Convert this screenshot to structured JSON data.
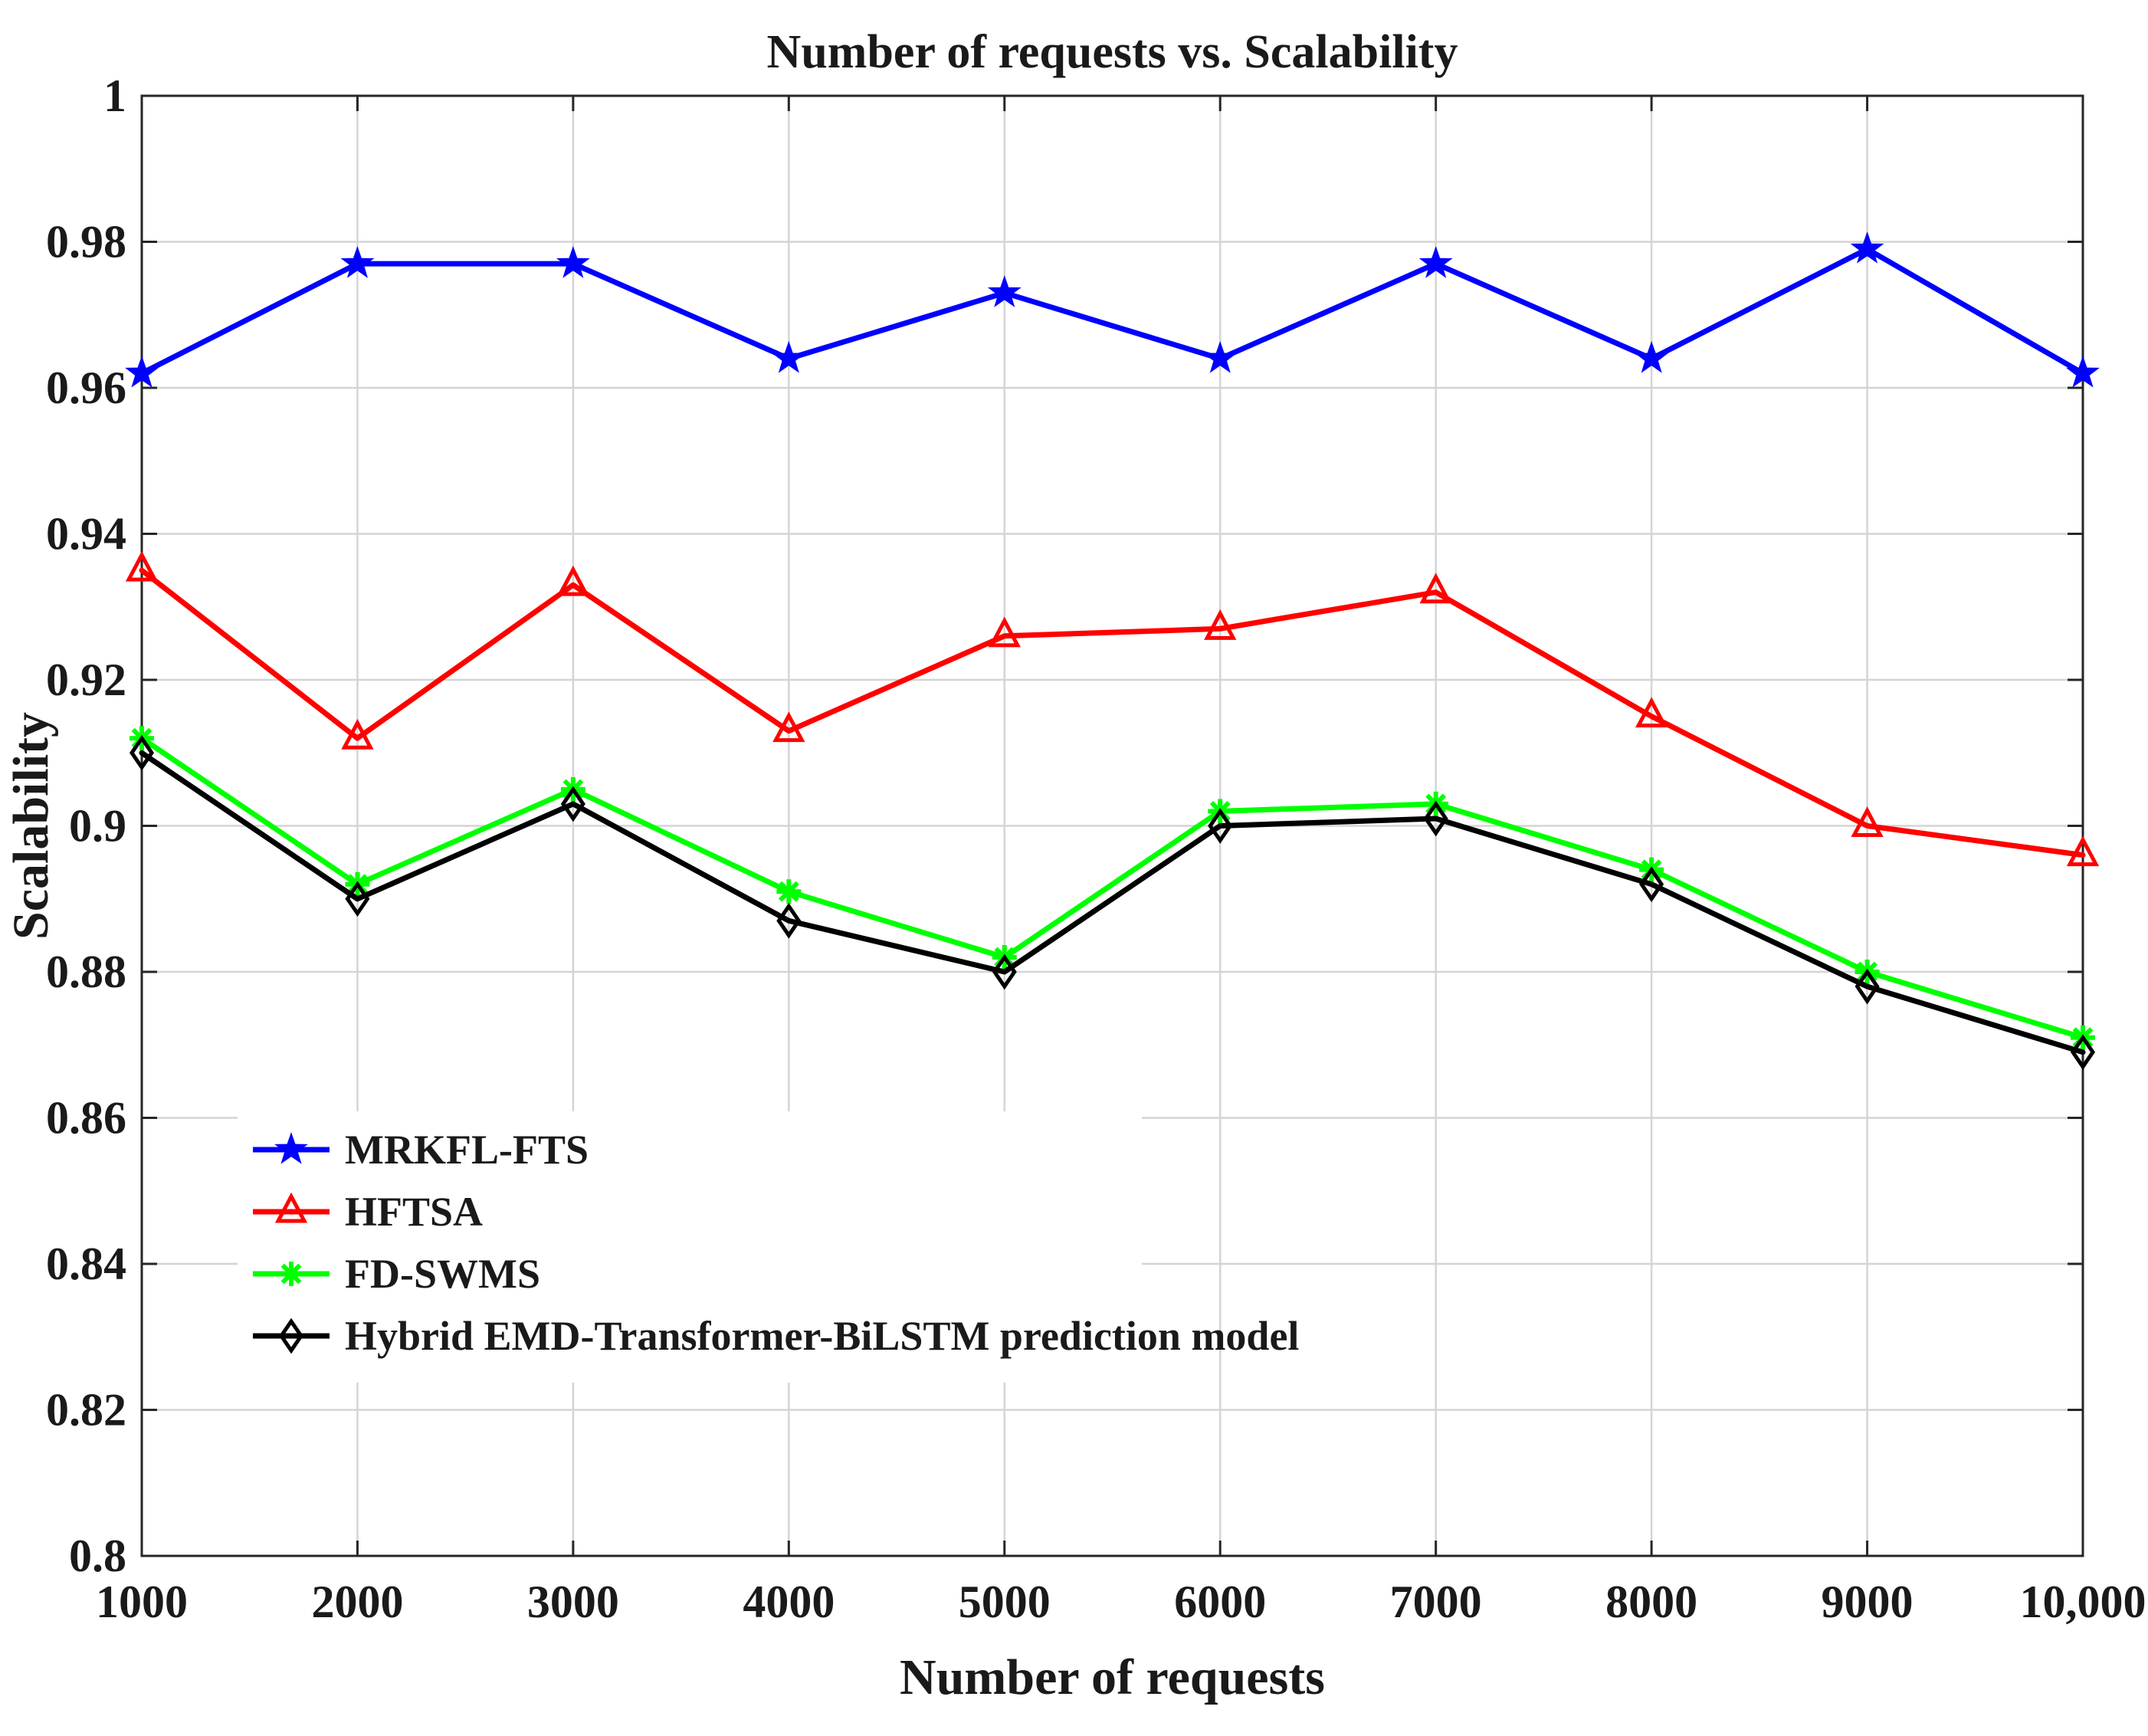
{
  "chart_data": {
    "type": "line",
    "title": "Number of requests vs. Scalability",
    "xlabel": "Number of requests",
    "ylabel": "Scalability",
    "x": [
      1000,
      2000,
      3000,
      4000,
      5000,
      6000,
      7000,
      8000,
      9000,
      10000
    ],
    "xtick_labels": [
      "1000",
      "2000",
      "3000",
      "4000",
      "5000",
      "6000",
      "7000",
      "8000",
      "9000",
      "10,000"
    ],
    "xlim": [
      1000,
      10000
    ],
    "ylim": [
      0.8,
      1.0
    ],
    "yticks": [
      0.8,
      0.82,
      0.84,
      0.86,
      0.88,
      0.9,
      0.92,
      0.94,
      0.96,
      0.98,
      1
    ],
    "ytick_labels": [
      "0.8",
      "0.82",
      "0.84",
      "0.86",
      "0.88",
      "0.9",
      "0.92",
      "0.94",
      "0.96",
      "0.98",
      "1"
    ],
    "grid": true,
    "legend_position": "lower-left",
    "series": [
      {
        "name": "MRKFL-FTS",
        "color": "#0000ff",
        "marker": "star",
        "values": [
          0.962,
          0.977,
          0.977,
          0.964,
          0.973,
          0.964,
          0.977,
          0.964,
          0.979,
          0.962
        ]
      },
      {
        "name": "HFTSA",
        "color": "#ff0000",
        "marker": "triangle",
        "values": [
          0.935,
          0.912,
          0.933,
          0.913,
          0.926,
          0.927,
          0.932,
          0.915,
          0.9,
          0.896
        ]
      },
      {
        "name": "FD-SWMS",
        "color": "#00ff00",
        "marker": "asterisk",
        "values": [
          0.912,
          0.892,
          0.905,
          0.891,
          0.882,
          0.902,
          0.903,
          0.894,
          0.88,
          0.871
        ]
      },
      {
        "name": "Hybrid EMD-Transformer-BiLSTM prediction model",
        "color": "#000000",
        "marker": "diamond",
        "values": [
          0.91,
          0.89,
          0.903,
          0.887,
          0.88,
          0.9,
          0.901,
          0.892,
          0.878,
          0.869
        ]
      }
    ]
  }
}
